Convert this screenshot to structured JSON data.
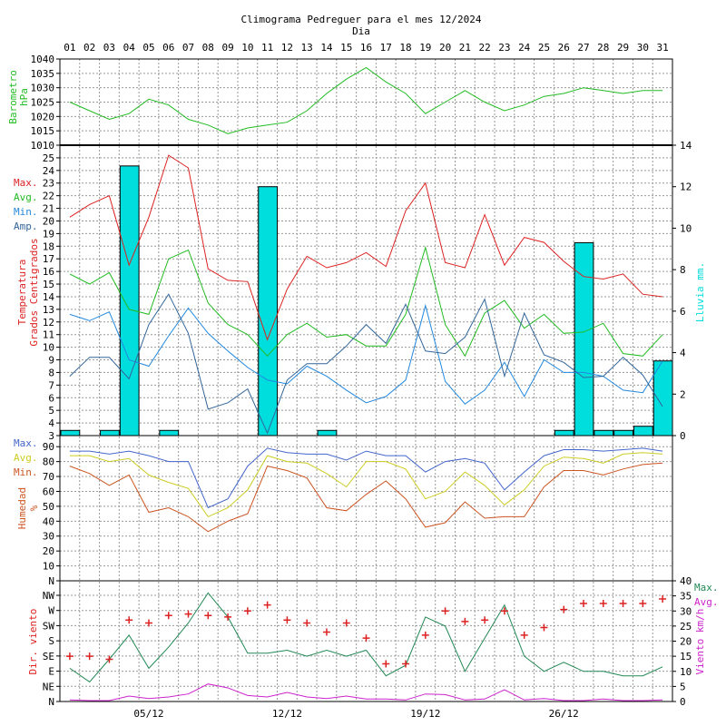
{
  "header": {
    "title": "Climograma Pedreguer para el mes 12/2024",
    "xlabel": "Dia"
  },
  "days": [
    "01",
    "02",
    "03",
    "04",
    "05",
    "06",
    "07",
    "08",
    "09",
    "10",
    "11",
    "12",
    "13",
    "14",
    "15",
    "16",
    "17",
    "18",
    "19",
    "20",
    "21",
    "22",
    "23",
    "24",
    "25",
    "26",
    "27",
    "28",
    "29",
    "30",
    "31"
  ],
  "bottom_dates": [
    "05/12",
    "12/12",
    "19/12",
    "26/12"
  ],
  "colors": {
    "pressure": "#22bb22",
    "max": "#dd2222",
    "avg": "#22bb22",
    "min": "#2288dd",
    "amp": "#336699",
    "rain": "#00dddd",
    "hum_max": "#4466cc",
    "hum_avg": "#cccc22",
    "hum_min": "#cc5522",
    "wind_max": "#228855",
    "wind_avg": "#cc22cc",
    "wind_dir": "#dd2222"
  },
  "chart_data": [
    {
      "type": "line",
      "name": "pressure",
      "ylabel": [
        "Barometro",
        "hPa"
      ],
      "ylim": [
        1010,
        1040
      ],
      "yticks": [
        "1010",
        "1015",
        "1020",
        "1025",
        "1030",
        "1035",
        "1040"
      ],
      "grid": true,
      "series": [
        {
          "values": [
            1025,
            1022,
            1019,
            1021,
            1026,
            1024,
            1019,
            1017,
            1014,
            1016,
            1017,
            1018,
            1022,
            1028,
            1033,
            1037,
            1032,
            1028,
            1021,
            1025,
            1029,
            1025,
            1022,
            1024,
            1027,
            1028,
            1030,
            1029,
            1028,
            1029,
            1029
          ]
        }
      ]
    },
    {
      "type": "line",
      "name": "temperature",
      "ylabel": [
        "Temperatura",
        "Grados Centigrados"
      ],
      "y2label": "Lluvia mm.",
      "ylim": [
        3,
        26
      ],
      "yticks": [
        "3",
        "4",
        "5",
        "6",
        "7",
        "8",
        "9",
        "10",
        "11",
        "12",
        "13",
        "14",
        "15",
        "16",
        "17",
        "18",
        "19",
        "20",
        "21",
        "22",
        "23",
        "24",
        "25"
      ],
      "y2lim": [
        0,
        14
      ],
      "y2ticks": [
        "0",
        "2",
        "4",
        "6",
        "8",
        "10",
        "12",
        "14"
      ],
      "legend": [
        "Max.",
        "Avg.",
        "Min.",
        "Amp."
      ],
      "grid": true,
      "series": [
        {
          "name": "Max.",
          "values": [
            20.3,
            21.3,
            22.0,
            16.5,
            20.3,
            25.2,
            24.2,
            16.2,
            15.3,
            15.2,
            10.6,
            14.6,
            17.2,
            16.3,
            16.7,
            17.5,
            16.4,
            20.8,
            23.0,
            16.7,
            16.3,
            20.5,
            16.5,
            18.7,
            18.3,
            16.8,
            15.6,
            15.4,
            15.8,
            14.2,
            14.0
          ]
        },
        {
          "name": "Avg.",
          "values": [
            15.8,
            15.0,
            15.9,
            13.0,
            12.6,
            17.0,
            17.7,
            13.5,
            11.8,
            11.0,
            9.3,
            11.0,
            11.9,
            10.8,
            11.0,
            10.1,
            10.1,
            12.6,
            17.9,
            11.8,
            9.3,
            12.7,
            13.7,
            11.5,
            12.6,
            11.1,
            11.2,
            11.9,
            9.5,
            9.3,
            11.0
          ]
        },
        {
          "name": "Min.",
          "values": [
            12.6,
            12.1,
            12.8,
            9.0,
            8.5,
            10.9,
            13.1,
            11.1,
            9.7,
            8.4,
            7.4,
            7.1,
            8.5,
            7.7,
            6.6,
            5.6,
            6.1,
            7.4,
            13.3,
            7.3,
            5.5,
            6.6,
            8.8,
            6.1,
            9.0,
            8.0,
            8.0,
            7.7,
            6.6,
            6.4,
            8.9
          ]
        },
        {
          "name": "Amp.",
          "values": [
            7.7,
            9.2,
            9.2,
            7.5,
            11.8,
            14.2,
            11.1,
            5.1,
            5.6,
            6.7,
            3.2,
            7.4,
            8.7,
            8.7,
            10.1,
            11.8,
            10.3,
            13.4,
            9.7,
            9.5,
            10.8,
            13.8,
            7.7,
            12.7,
            9.4,
            8.8,
            7.6,
            7.7,
            9.2,
            7.8,
            5.3
          ]
        }
      ],
      "rain": [
        0.25,
        0,
        0.25,
        13.0,
        0,
        0.25,
        0,
        0,
        0,
        0,
        12.0,
        0,
        0,
        0.25,
        0,
        0,
        0,
        0,
        0,
        0,
        0,
        0,
        0,
        0,
        0,
        0.25,
        9.3,
        0.25,
        0.25,
        0.45,
        3.6
      ]
    },
    {
      "type": "line",
      "name": "humidity",
      "ylabel": [
        "Humedad",
        "%"
      ],
      "ylim": [
        0,
        95
      ],
      "yticks": [
        "N",
        "10",
        "20",
        "30",
        "40",
        "50",
        "60",
        "70",
        "80",
        "90"
      ],
      "legend": [
        "Max.",
        "Avg.",
        "Min."
      ],
      "grid": true,
      "series": [
        {
          "name": "Max.",
          "values": [
            87,
            87,
            85,
            87,
            84,
            80,
            80,
            49,
            55,
            77,
            89,
            86,
            85,
            85,
            81,
            87,
            84,
            84,
            73,
            80,
            82,
            79,
            61,
            73,
            84,
            88,
            88,
            87,
            88,
            89,
            87
          ]
        },
        {
          "name": "Avg.",
          "values": [
            84,
            84,
            80,
            82,
            71,
            66,
            62,
            43,
            49,
            61,
            84,
            80,
            79,
            72,
            63,
            80,
            80,
            75,
            55,
            60,
            73,
            64,
            51,
            61,
            77,
            83,
            82,
            79,
            85,
            86,
            85
          ]
        },
        {
          "name": "Min.",
          "values": [
            77,
            72,
            64,
            71,
            46,
            49,
            43,
            33,
            40,
            45,
            77,
            74,
            69,
            49,
            47,
            58,
            67,
            55,
            36,
            39,
            53,
            42,
            43,
            43,
            63,
            74,
            74,
            71,
            75,
            78,
            79
          ]
        }
      ]
    },
    {
      "type": "line",
      "name": "wind",
      "ylabel": "Dir. viento",
      "y2label": "Viento km/h",
      "ylim": [
        0,
        40
      ],
      "ydir_ticks": [
        "N",
        "NE",
        "E",
        "SE",
        "S",
        "SW",
        "W",
        "NW"
      ],
      "y2ticks": [
        "0",
        "5",
        "10",
        "15",
        "20",
        "25",
        "30",
        "35",
        "40"
      ],
      "legend": [
        "Max.",
        "Avg."
      ],
      "grid": true,
      "series": [
        {
          "name": "Max.",
          "values": [
            11,
            6.5,
            14,
            22,
            11,
            18,
            26,
            36,
            28,
            16,
            16,
            17,
            15,
            17,
            15,
            17,
            8.5,
            12,
            28,
            25,
            10,
            21,
            32,
            15,
            10,
            13,
            10,
            10,
            8.5,
            8.5,
            11.5
          ]
        },
        {
          "name": "Avg.",
          "values": [
            0.5,
            0.3,
            0.3,
            1.8,
            1,
            1.5,
            2.5,
            5.8,
            4.5,
            2,
            1.5,
            3,
            1.5,
            1,
            1.8,
            0.8,
            0.8,
            0.5,
            2.5,
            2.3,
            0.5,
            0.8,
            3.9,
            0.5,
            1,
            0.3,
            0.3,
            0.8,
            0.3,
            0.3,
            0.5
          ]
        }
      ],
      "direction_points": [
        [
          1,
          15
        ],
        [
          2,
          15
        ],
        [
          3,
          14
        ],
        [
          4,
          27
        ],
        [
          5,
          26
        ],
        [
          6,
          28.5
        ],
        [
          7,
          29
        ],
        [
          8,
          28.5
        ],
        [
          9,
          28
        ],
        [
          10,
          30
        ],
        [
          11,
          32
        ],
        [
          12,
          27
        ],
        [
          13,
          26
        ],
        [
          14,
          23
        ],
        [
          15,
          26
        ],
        [
          16,
          21
        ],
        [
          17,
          12.5
        ],
        [
          18,
          12.5
        ],
        [
          19,
          22
        ],
        [
          20,
          30
        ],
        [
          21,
          26.5
        ],
        [
          22,
          27
        ],
        [
          23,
          30
        ],
        [
          24,
          22
        ],
        [
          25,
          24.5
        ],
        [
          26,
          30.5
        ],
        [
          27,
          32.5
        ],
        [
          28,
          32.5
        ],
        [
          29,
          32.5
        ],
        [
          30,
          32.5
        ],
        [
          31,
          34
        ]
      ]
    }
  ]
}
